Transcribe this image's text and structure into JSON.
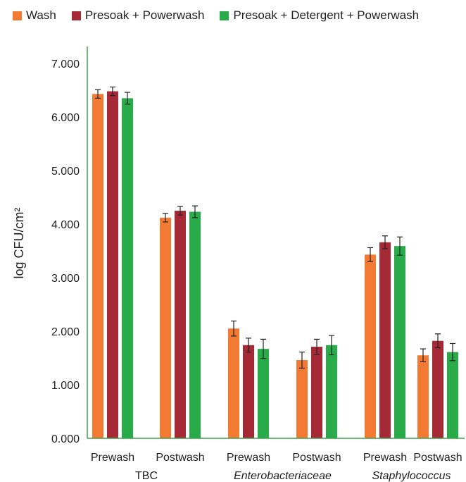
{
  "chart_data": {
    "type": "bar",
    "ylabel": "log CFU/cm²",
    "ylim": [
      0,
      7
    ],
    "yticks": [
      "0.000",
      "1.000",
      "2.000",
      "3.000",
      "4.000",
      "5.000",
      "6.000",
      "7.000"
    ],
    "categories": [
      "Prewash",
      "Postwash",
      "Prewash",
      "Postwash",
      "Prewash",
      "Postwash"
    ],
    "groups": [
      {
        "label": "TBC",
        "italic": false
      },
      {
        "label": "Enterobacteriaceae",
        "italic": true
      },
      {
        "label": "Staphylococcus",
        "italic": true
      }
    ],
    "series": [
      {
        "name": "Wash",
        "color": "#f37a33",
        "values": [
          6.43,
          4.12,
          2.05,
          1.46,
          3.43,
          1.55
        ],
        "errors": [
          0.08,
          0.08,
          0.14,
          0.15,
          0.13,
          0.12
        ]
      },
      {
        "name": "Presoak + Powerwash",
        "color": "#a52a36",
        "values": [
          6.48,
          4.25,
          1.74,
          1.71,
          3.66,
          1.82
        ],
        "errors": [
          0.08,
          0.08,
          0.13,
          0.14,
          0.12,
          0.13
        ]
      },
      {
        "name": "Presoak + Detergent + Powerwash",
        "color": "#2aab4a",
        "values": [
          6.35,
          4.23,
          1.67,
          1.74,
          3.59,
          1.61
        ],
        "errors": [
          0.11,
          0.11,
          0.18,
          0.18,
          0.17,
          0.16
        ]
      }
    ],
    "grid": false,
    "legend_position": "top"
  }
}
